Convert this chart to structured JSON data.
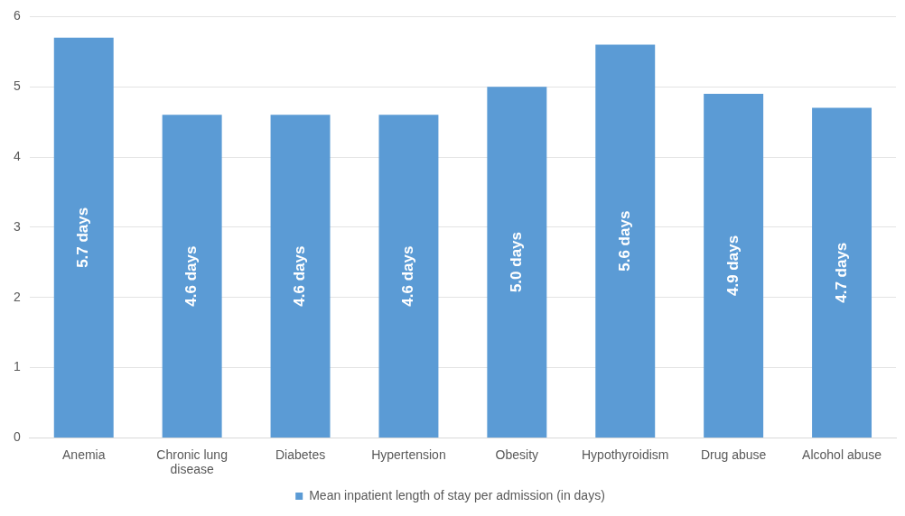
{
  "chart_data": {
    "type": "bar",
    "categories": [
      "Anemia",
      "Chronic lung disease",
      "Diabetes",
      "Hypertension",
      "Obesity",
      "Hypothyroidism",
      "Drug abuse",
      "Alcohol abuse"
    ],
    "series": [
      {
        "name": "Mean inpatient length of stay per admission (in days)",
        "color": "#5b9bd5",
        "values": [
          5.7,
          4.6,
          4.6,
          4.6,
          5.0,
          5.6,
          4.9,
          4.7
        ],
        "value_labels": [
          "5.7 days",
          "4.6 days",
          "4.6 days",
          "4.6 days",
          "5.0 days",
          "5.6 days",
          "4.9 days",
          "4.7 days"
        ]
      }
    ],
    "ylim": [
      0,
      6
    ],
    "yticks": [
      0,
      1,
      2,
      3,
      4,
      5,
      6
    ],
    "grid": "y",
    "legend": "bottom"
  }
}
